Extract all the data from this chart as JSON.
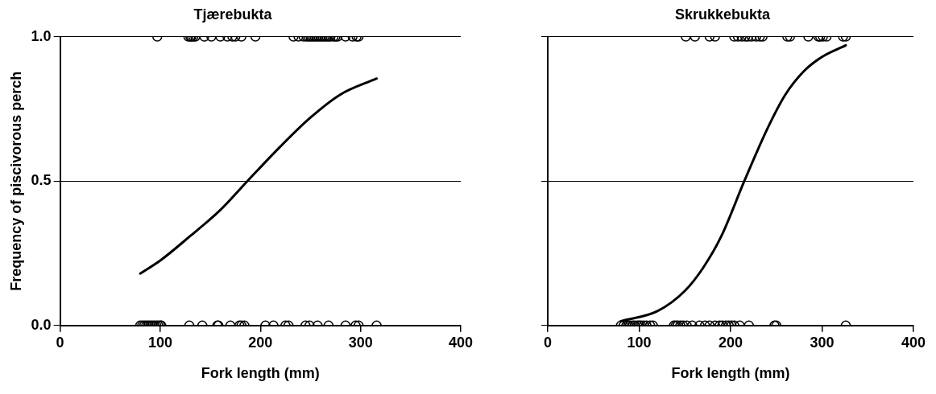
{
  "chart_data": [
    {
      "type": "scatter",
      "title": "Tjærebukta",
      "xlabel": "Fork length (mm)",
      "ylabel": "Frequency of piscivorous perch",
      "xlim": [
        0,
        400
      ],
      "xticks": [
        0,
        100,
        200,
        300,
        400
      ],
      "ylim": [
        0,
        1
      ],
      "yticks": [
        {
          "value": 0,
          "label": "0.0"
        },
        {
          "value": 0.5,
          "label": "0.5"
        },
        {
          "value": 1,
          "label": "1.0"
        }
      ],
      "grid": "y",
      "marker": "circle",
      "series": [
        {
          "color": "#000000",
          "x": [
            97,
            128,
            130,
            131,
            133,
            135,
            144,
            151,
            160,
            167,
            172,
            175,
            181,
            195,
            233,
            238,
            243,
            246,
            248,
            250,
            252,
            254,
            256,
            258,
            260,
            262,
            264,
            266,
            268,
            270,
            273,
            275,
            277,
            285,
            292,
            296,
            298
          ],
          "values": [
            1,
            1,
            1,
            1,
            1,
            1,
            1,
            1,
            1,
            1,
            1,
            1,
            1,
            1,
            1,
            1,
            1,
            1,
            1,
            1,
            1,
            1,
            1,
            1,
            1,
            1,
            1,
            1,
            1,
            1,
            1,
            1,
            1,
            1,
            1,
            1,
            1
          ]
        },
        {
          "color": "#000000",
          "x": [
            80,
            82,
            84,
            86,
            88,
            90,
            92,
            94,
            96,
            98,
            100,
            101,
            129,
            142,
            157,
            158,
            170,
            179,
            181,
            184,
            205,
            213,
            225,
            228,
            245,
            249,
            257,
            268,
            285,
            295,
            298,
            316
          ],
          "values": [
            0,
            0,
            0,
            0,
            0,
            0,
            0,
            0,
            0,
            0,
            0,
            0,
            0,
            0,
            0,
            0,
            0,
            0,
            0,
            0,
            0,
            0,
            0,
            0,
            0,
            0,
            0,
            0,
            0,
            0,
            0,
            0
          ]
        },
        {
          "type": "line",
          "color": "#000000",
          "marker": "none",
          "x": [
            80,
            100,
            130,
            160,
            187,
            220,
            250,
            280,
            316
          ],
          "values": [
            0.18,
            0.225,
            0.31,
            0.4,
            0.5,
            0.62,
            0.72,
            0.8,
            0.855
          ]
        }
      ]
    },
    {
      "type": "scatter",
      "title": "Skrukkebukta",
      "xlabel": "Fork length (mm)",
      "xlim": [
        0,
        400
      ],
      "xticks": [
        0,
        100,
        200,
        300,
        400
      ],
      "ylim": [
        0,
        1
      ],
      "yticks": [
        {
          "value": 0,
          "label": null
        },
        {
          "value": 0.5,
          "label": null
        },
        {
          "value": 1,
          "label": null
        }
      ],
      "tick_labels": "x",
      "grid": "y",
      "marker": "circle",
      "series": [
        {
          "color": "#000000",
          "x": [
            151,
            161,
            177,
            183,
            204,
            208,
            212,
            216,
            219,
            223,
            228,
            232,
            235,
            262,
            265,
            285,
            296,
            298,
            301,
            305,
            323,
            326
          ],
          "values": [
            1,
            1,
            1,
            1,
            1,
            1,
            1,
            1,
            1,
            1,
            1,
            1,
            1,
            1,
            1,
            1,
            1,
            1,
            1,
            1,
            1,
            1
          ]
        },
        {
          "color": "#000000",
          "x": [
            80,
            83,
            86,
            88,
            90,
            93,
            95,
            98,
            100,
            102,
            105,
            108,
            112,
            115,
            138,
            140,
            142,
            145,
            148,
            152,
            158,
            166,
            172,
            177,
            183,
            188,
            191,
            195,
            198,
            201,
            204,
            210,
            220,
            248,
            250,
            326
          ],
          "values": [
            0,
            0,
            0,
            0,
            0,
            0,
            0,
            0,
            0,
            0,
            0,
            0,
            0,
            0,
            0,
            0,
            0,
            0,
            0,
            0,
            0,
            0,
            0,
            0,
            0,
            0,
            0,
            0,
            0,
            0,
            0,
            0,
            0,
            0,
            0,
            0
          ]
        },
        {
          "type": "line",
          "color": "#000000",
          "marker": "none",
          "x": [
            80,
            120,
            150,
            170,
            190,
            215,
            240,
            260,
            280,
            300,
            326
          ],
          "values": [
            0.015,
            0.05,
            0.12,
            0.2,
            0.31,
            0.5,
            0.68,
            0.8,
            0.88,
            0.93,
            0.97
          ]
        }
      ]
    }
  ]
}
